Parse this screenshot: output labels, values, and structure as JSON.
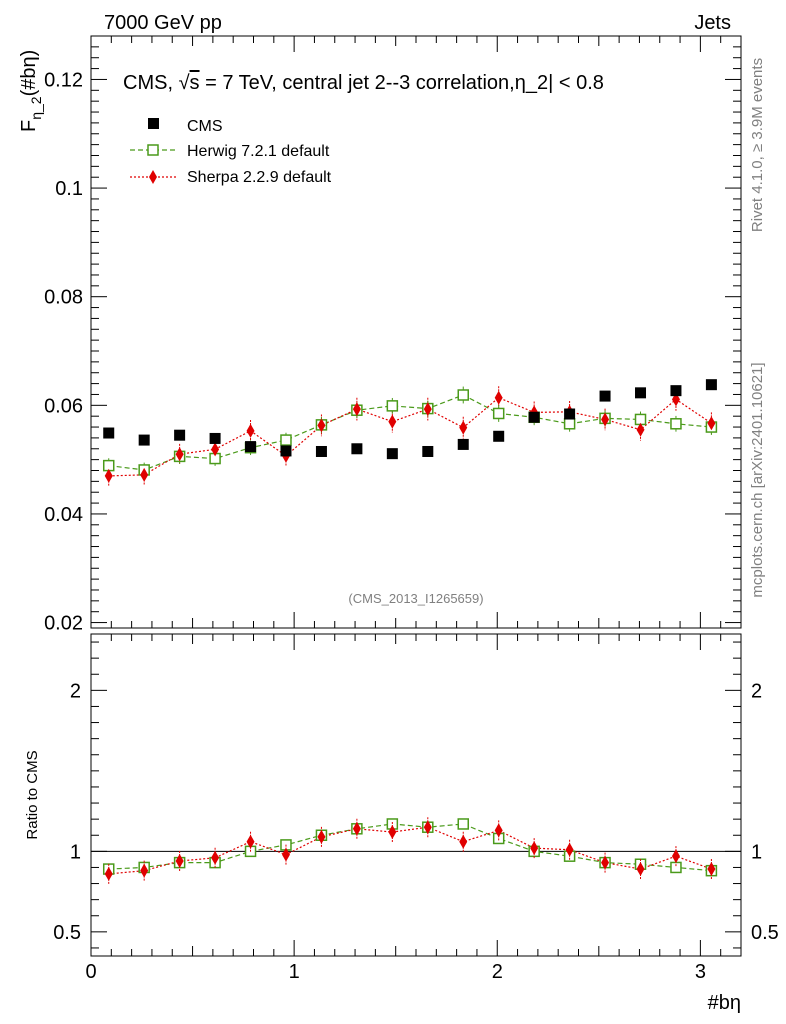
{
  "header": {
    "left": "7000 GeV pp",
    "right": "Jets"
  },
  "side_labels": {
    "rivet": "Rivet 4.1.0, ≥ 3.9M events",
    "mcplots": "mcplots.cern.ch [arXiv:2401.10621]"
  },
  "colors": {
    "cms": "#000000",
    "herwig": "#4a9a1a",
    "sherpa": "#e00000"
  },
  "chart_data": [
    {
      "type": "scatter",
      "panel": "main",
      "title": "CMS, √s = 7 TeV, central jet 2--3 correlation,η_2| < 0.8",
      "title_prefix": "CMS, ",
      "title_sqrt": "s",
      "title_suffix": " = 7 TeV, central jet 2--3 correlation,η_2| < 0.8",
      "watermark": "(CMS_2013_I1265659)",
      "ylabel_main": "F",
      "ylabel_sub": "η_2",
      "ylabel_tail": "(#bη)",
      "xlabel": "#bη",
      "xlim": [
        0,
        3.2
      ],
      "ylim": [
        0.019,
        0.128
      ],
      "yticks": [
        0.02,
        0.04,
        0.06,
        0.08,
        0.1,
        0.12
      ],
      "ytick_labels": [
        "0.02",
        "0.04",
        "0.06",
        "0.08",
        "0.1",
        "0.12"
      ],
      "legend": [
        "CMS",
        "Herwig 7.2.1 default",
        "Sherpa 2.2.9 default"
      ],
      "x": [
        0.0873,
        0.2618,
        0.4363,
        0.6109,
        0.7854,
        0.9599,
        1.1345,
        1.309,
        1.4835,
        1.6581,
        1.8326,
        2.0071,
        2.1817,
        2.3562,
        2.5307,
        2.7053,
        2.8798,
        3.0543
      ],
      "series": [
        {
          "name": "CMS",
          "values": [
            0.0549,
            0.0536,
            0.0545,
            0.0539,
            0.0524,
            0.0516,
            0.0515,
            0.052,
            0.0511,
            0.0515,
            0.0528,
            0.0543,
            0.0578,
            0.0584,
            0.0617,
            0.0623,
            0.0627,
            0.0638
          ]
        },
        {
          "name": "Herwig 7.2.1 default",
          "values": [
            0.0489,
            0.0481,
            0.0506,
            0.0502,
            0.0522,
            0.0536,
            0.0564,
            0.0591,
            0.0599,
            0.0594,
            0.0619,
            0.0585,
            0.0578,
            0.0566,
            0.0576,
            0.0574,
            0.0566,
            0.056
          ],
          "errors": [
            0.0008,
            0.0008,
            0.0008,
            0.0008,
            0.0008,
            0.0008,
            0.0009,
            0.0009,
            0.0009,
            0.0009,
            0.001,
            0.001,
            0.0009,
            0.0009,
            0.0009,
            0.0009,
            0.0009,
            0.0009
          ]
        },
        {
          "name": "Sherpa 2.2.9 default",
          "values": [
            0.047,
            0.0472,
            0.051,
            0.0519,
            0.0553,
            0.0507,
            0.0563,
            0.0593,
            0.057,
            0.0593,
            0.0559,
            0.0614,
            0.0587,
            0.0588,
            0.0574,
            0.0555,
            0.0611,
            0.0567
          ],
          "errors": [
            0.0019,
            0.0019,
            0.0019,
            0.0019,
            0.002,
            0.0019,
            0.002,
            0.0021,
            0.002,
            0.0021,
            0.002,
            0.0021,
            0.002,
            0.002,
            0.002,
            0.002,
            0.0021,
            0.002
          ]
        }
      ]
    },
    {
      "type": "scatter",
      "panel": "ratio",
      "ylabel": "Ratio to CMS",
      "xlim": [
        0,
        3.2
      ],
      "ylim": [
        0.35,
        2.35
      ],
      "yticks": [
        0.5,
        1,
        2
      ],
      "ytick_labels": [
        "0.5",
        "1",
        "2"
      ],
      "xticks": [
        0,
        1,
        2,
        3
      ],
      "xtick_labels": [
        "0",
        "1",
        "2",
        "3"
      ],
      "x": [
        0.0873,
        0.2618,
        0.4363,
        0.6109,
        0.7854,
        0.9599,
        1.1345,
        1.309,
        1.4835,
        1.6581,
        1.8326,
        2.0071,
        2.1817,
        2.3562,
        2.5307,
        2.7053,
        2.8798,
        3.0543
      ],
      "series": [
        {
          "name": "Herwig 7.2.1 default",
          "values": [
            0.89,
            0.9,
            0.93,
            0.93,
            1.0,
            1.04,
            1.1,
            1.14,
            1.17,
            1.15,
            1.17,
            1.08,
            1.0,
            0.97,
            0.93,
            0.92,
            0.9,
            0.88
          ]
        },
        {
          "name": "Sherpa 2.2.9 default",
          "values": [
            0.86,
            0.88,
            0.94,
            0.96,
            1.06,
            0.98,
            1.09,
            1.14,
            1.12,
            1.15,
            1.06,
            1.13,
            1.02,
            1.01,
            0.93,
            0.89,
            0.97,
            0.89
          ]
        }
      ]
    }
  ]
}
